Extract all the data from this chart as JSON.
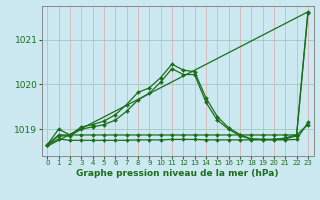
{
  "title": "",
  "xlabel": "Graphe pression niveau de la mer (hPa)",
  "ylabel": "",
  "bg_color": "#cce8f0",
  "grid_color": "#99ccbb",
  "line_color": "#1a6e1a",
  "xlim": [
    -0.5,
    23.5
  ],
  "ylim": [
    1018.4,
    1021.75
  ],
  "yticks": [
    1019,
    1020,
    1021
  ],
  "xticks": [
    0,
    1,
    2,
    3,
    4,
    5,
    6,
    7,
    8,
    9,
    10,
    11,
    12,
    13,
    14,
    15,
    16,
    17,
    18,
    19,
    20,
    21,
    22,
    23
  ],
  "series": [
    {
      "x": [
        0,
        23
      ],
      "y": [
        1018.62,
        1021.62
      ],
      "has_markers": false
    },
    {
      "x": [
        0,
        1,
        2,
        3,
        4,
        5,
        6,
        7,
        8,
        9,
        10,
        11,
        12,
        13,
        14,
        15,
        16,
        17,
        18,
        19,
        20,
        21,
        22,
        23
      ],
      "y": [
        1018.65,
        1018.78,
        1018.75,
        1018.75,
        1018.75,
        1018.75,
        1018.75,
        1018.75,
        1018.76,
        1018.76,
        1018.76,
        1018.77,
        1018.77,
        1018.77,
        1018.76,
        1018.76,
        1018.76,
        1018.76,
        1018.76,
        1018.76,
        1018.76,
        1018.76,
        1018.77,
        1019.15
      ],
      "has_markers": true
    },
    {
      "x": [
        0,
        1,
        2,
        3,
        4,
        5,
        6,
        7,
        8,
        9,
        10,
        11,
        12,
        13,
        14,
        15,
        16,
        17,
        18,
        19,
        20,
        21,
        22,
        23
      ],
      "y": [
        1018.65,
        1018.85,
        1018.85,
        1019.0,
        1019.05,
        1019.1,
        1019.2,
        1019.4,
        1019.65,
        1019.8,
        1020.05,
        1020.35,
        1020.22,
        1020.22,
        1019.6,
        1019.2,
        1019.0,
        1018.85,
        1018.78,
        1018.77,
        1018.77,
        1018.78,
        1018.85,
        1021.6
      ],
      "has_markers": true
    },
    {
      "x": [
        0,
        1,
        2,
        3,
        4,
        5,
        6,
        7,
        8,
        9,
        10,
        11,
        12,
        13,
        14,
        15,
        16,
        17,
        18,
        19,
        20,
        21,
        22,
        23
      ],
      "y": [
        1018.65,
        1018.87,
        1018.87,
        1019.05,
        1019.1,
        1019.18,
        1019.32,
        1019.55,
        1019.82,
        1019.92,
        1020.15,
        1020.45,
        1020.32,
        1020.28,
        1019.7,
        1019.28,
        1019.03,
        1018.88,
        1018.78,
        1018.77,
        1018.77,
        1018.8,
        1018.88,
        1021.62
      ],
      "has_markers": true
    },
    {
      "x": [
        0,
        1,
        2,
        3,
        4,
        5,
        6,
        7,
        8,
        9,
        10,
        11,
        12,
        13,
        14,
        15,
        16,
        17,
        18,
        19,
        20,
        21,
        22,
        23
      ],
      "y": [
        1018.65,
        1019.0,
        1018.87,
        1018.87,
        1018.87,
        1018.87,
        1018.87,
        1018.87,
        1018.87,
        1018.87,
        1018.87,
        1018.87,
        1018.87,
        1018.87,
        1018.87,
        1018.87,
        1018.87,
        1018.87,
        1018.87,
        1018.87,
        1018.87,
        1018.87,
        1018.87,
        1019.1
      ],
      "has_markers": true
    }
  ]
}
